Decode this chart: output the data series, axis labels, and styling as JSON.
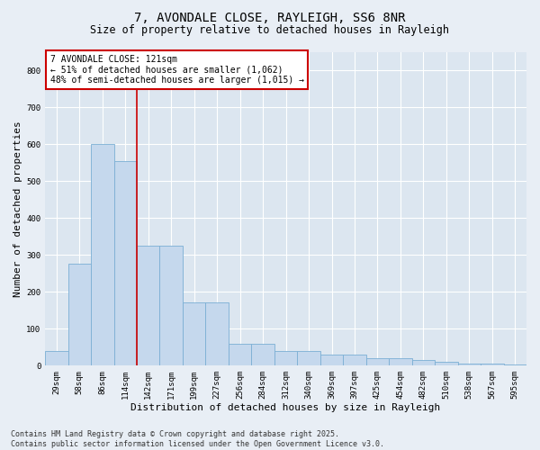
{
  "title1": "7, AVONDALE CLOSE, RAYLEIGH, SS6 8NR",
  "title2": "Size of property relative to detached houses in Rayleigh",
  "xlabel": "Distribution of detached houses by size in Rayleigh",
  "ylabel": "Number of detached properties",
  "categories": [
    "29sqm",
    "58sqm",
    "86sqm",
    "114sqm",
    "142sqm",
    "171sqm",
    "199sqm",
    "227sqm",
    "256sqm",
    "284sqm",
    "312sqm",
    "340sqm",
    "369sqm",
    "397sqm",
    "425sqm",
    "454sqm",
    "482sqm",
    "510sqm",
    "538sqm",
    "567sqm",
    "595sqm"
  ],
  "values": [
    40,
    275,
    600,
    555,
    325,
    325,
    170,
    170,
    60,
    60,
    40,
    40,
    30,
    30,
    20,
    20,
    15,
    10,
    5,
    5,
    2
  ],
  "bar_color": "#c5d8ed",
  "bar_edge_color": "#7bafd4",
  "vline_x": 3.5,
  "vline_color": "#cc0000",
  "annotation_text": "7 AVONDALE CLOSE: 121sqm\n← 51% of detached houses are smaller (1,062)\n48% of semi-detached houses are larger (1,015) →",
  "annotation_box_edge": "#cc0000",
  "ylim": [
    0,
    850
  ],
  "yticks": [
    0,
    100,
    200,
    300,
    400,
    500,
    600,
    700,
    800
  ],
  "footnote": "Contains HM Land Registry data © Crown copyright and database right 2025.\nContains public sector information licensed under the Open Government Licence v3.0.",
  "bg_color": "#e8eef5",
  "plot_bg_color": "#dce6f0",
  "grid_color": "#ffffff",
  "title1_fontsize": 10,
  "title2_fontsize": 8.5,
  "xlabel_fontsize": 8,
  "ylabel_fontsize": 8,
  "tick_fontsize": 6.5,
  "annotation_fontsize": 7,
  "footnote_fontsize": 6
}
